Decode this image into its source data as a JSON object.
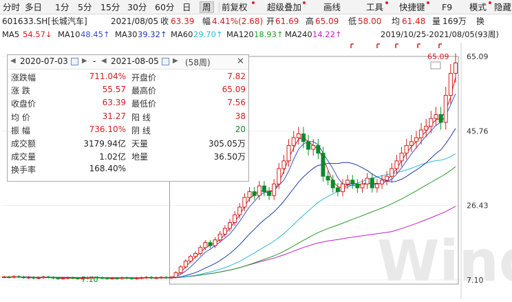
{
  "toolbar": {
    "items": [
      "分时",
      "多日",
      "1分",
      "5分",
      "15分",
      "30分",
      "60分",
      "日",
      "周",
      "前复权",
      "超级叠加",
      "画线",
      "工具",
      "快捷键",
      "F9",
      "模式",
      "隐藏"
    ],
    "selected": "周"
  },
  "info_line": {
    "security": "601633.SH[长城汽车]",
    "date": "2021/08/05",
    "close_label": "收",
    "close": "63.39",
    "change_label": "幅",
    "change": "4.41%(2.68)",
    "open_label": "开",
    "open": "61.69",
    "high_label": "高",
    "high": "65.09",
    "low_label": "低",
    "low": "58.00",
    "avg_label": "均",
    "avg": "61.48",
    "volume_label": "量",
    "volume": "169万",
    "turnover_label": "换"
  },
  "ma_line": {
    "ma5": "MA5",
    "ma5_val": "54.57↓",
    "ma10": "MA10",
    "ma10_val": "48.45↑",
    "ma30": "MA30",
    "ma30_val": "39.32↑",
    "ma60": "MA60",
    "ma60_val": "29.70↑",
    "ma120": "MA120",
    "ma120_val": "18.93↑",
    "ma240": "MA240",
    "ma240_val": "14.22↑",
    "range": "2019/10/25-2021/08/05(93周)"
  },
  "panel": {
    "start_date": "2020-07-03",
    "dash": "-",
    "end_date": "2021-08-05",
    "weeks": "(58周)",
    "stats": [
      {
        "label": "涨跌幅",
        "value": "711.04%",
        "color": "red",
        "label2": "开盘价",
        "value2": "7.82",
        "color2": "red"
      },
      {
        "label": "涨  跌",
        "value": "55.57",
        "color": "red",
        "label2": "最高价",
        "value2": "65.09",
        "color2": "red"
      },
      {
        "label": "收盘价",
        "value": "63.39",
        "color": "red",
        "label2": "最低价",
        "value2": "7.56",
        "color2": "red"
      },
      {
        "label": "均  价",
        "value": "31.27",
        "color": "red",
        "label2": "阳  线",
        "value2": "38",
        "color2": "red"
      },
      {
        "label": "振  幅",
        "value": "736.10%",
        "color": "red",
        "label2": "阴  线",
        "value2": "20",
        "color2": "green"
      },
      {
        "label": "成交额",
        "value": "3179.94亿",
        "color": "black",
        "label2": "天量",
        "value2": "305.05万",
        "color2": "black"
      },
      {
        "label": "成交量",
        "value": "1.02亿",
        "color": "black",
        "label2": "地量",
        "value2": "36.50万",
        "color2": "black"
      },
      {
        "label": "换手率",
        "value": "168.40%",
        "color": "black",
        "label2": "",
        "value2": "",
        "color2": "black"
      }
    ]
  },
  "chart_data": {
    "type": "line",
    "y_axis_ticks": [
      "65.09",
      "45.76",
      "26.43",
      "7.10"
    ],
    "y_ticks_values": [
      65.09,
      45.76,
      26.43,
      7.1
    ],
    "ylim": [
      7.1,
      65.09
    ],
    "high_label": "65.09",
    "low_label": "7.10",
    "weeks": 93,
    "closes": [
      7.9,
      7.8,
      8.0,
      7.9,
      7.7,
      7.8,
      7.6,
      7.7,
      7.9,
      7.8,
      7.6,
      7.5,
      7.6,
      7.7,
      7.6,
      7.5,
      7.6,
      7.7,
      7.8,
      7.7,
      7.6,
      7.5,
      7.6,
      7.5,
      7.7,
      7.6,
      7.5,
      7.6,
      7.7,
      7.8,
      7.6,
      7.7,
      7.8,
      7.7,
      7.8,
      9.0,
      10.5,
      12.0,
      13.2,
      14.0,
      15.5,
      16.8,
      16.0,
      17.5,
      19.0,
      20.5,
      22.0,
      24.0,
      26.0,
      28.5,
      30.0,
      29.0,
      31.5,
      30.0,
      29.0,
      32.0,
      36.0,
      38.0,
      42.0,
      44.0,
      45.0,
      43.0,
      41.0,
      42.0,
      40.0,
      34.0,
      33.0,
      31.0,
      30.0,
      32.0,
      33.0,
      32.0,
      31.0,
      32.0,
      33.5,
      31.0,
      32.0,
      33.0,
      34.0,
      36.0,
      38.0,
      40.0,
      42.0,
      43.0,
      44.0,
      46.0,
      47.0,
      49.0,
      50.0,
      48.0,
      55.0,
      60.7,
      63.39
    ],
    "ma_colors": {
      "ma5": "#d41c1c",
      "ma10": "#3a4fc8",
      "ma30": "#1f3aa8",
      "ma60": "#2fb6d6",
      "ma120": "#2a9a2a",
      "ma240": "#c020c0"
    }
  },
  "watermark": "Wind"
}
